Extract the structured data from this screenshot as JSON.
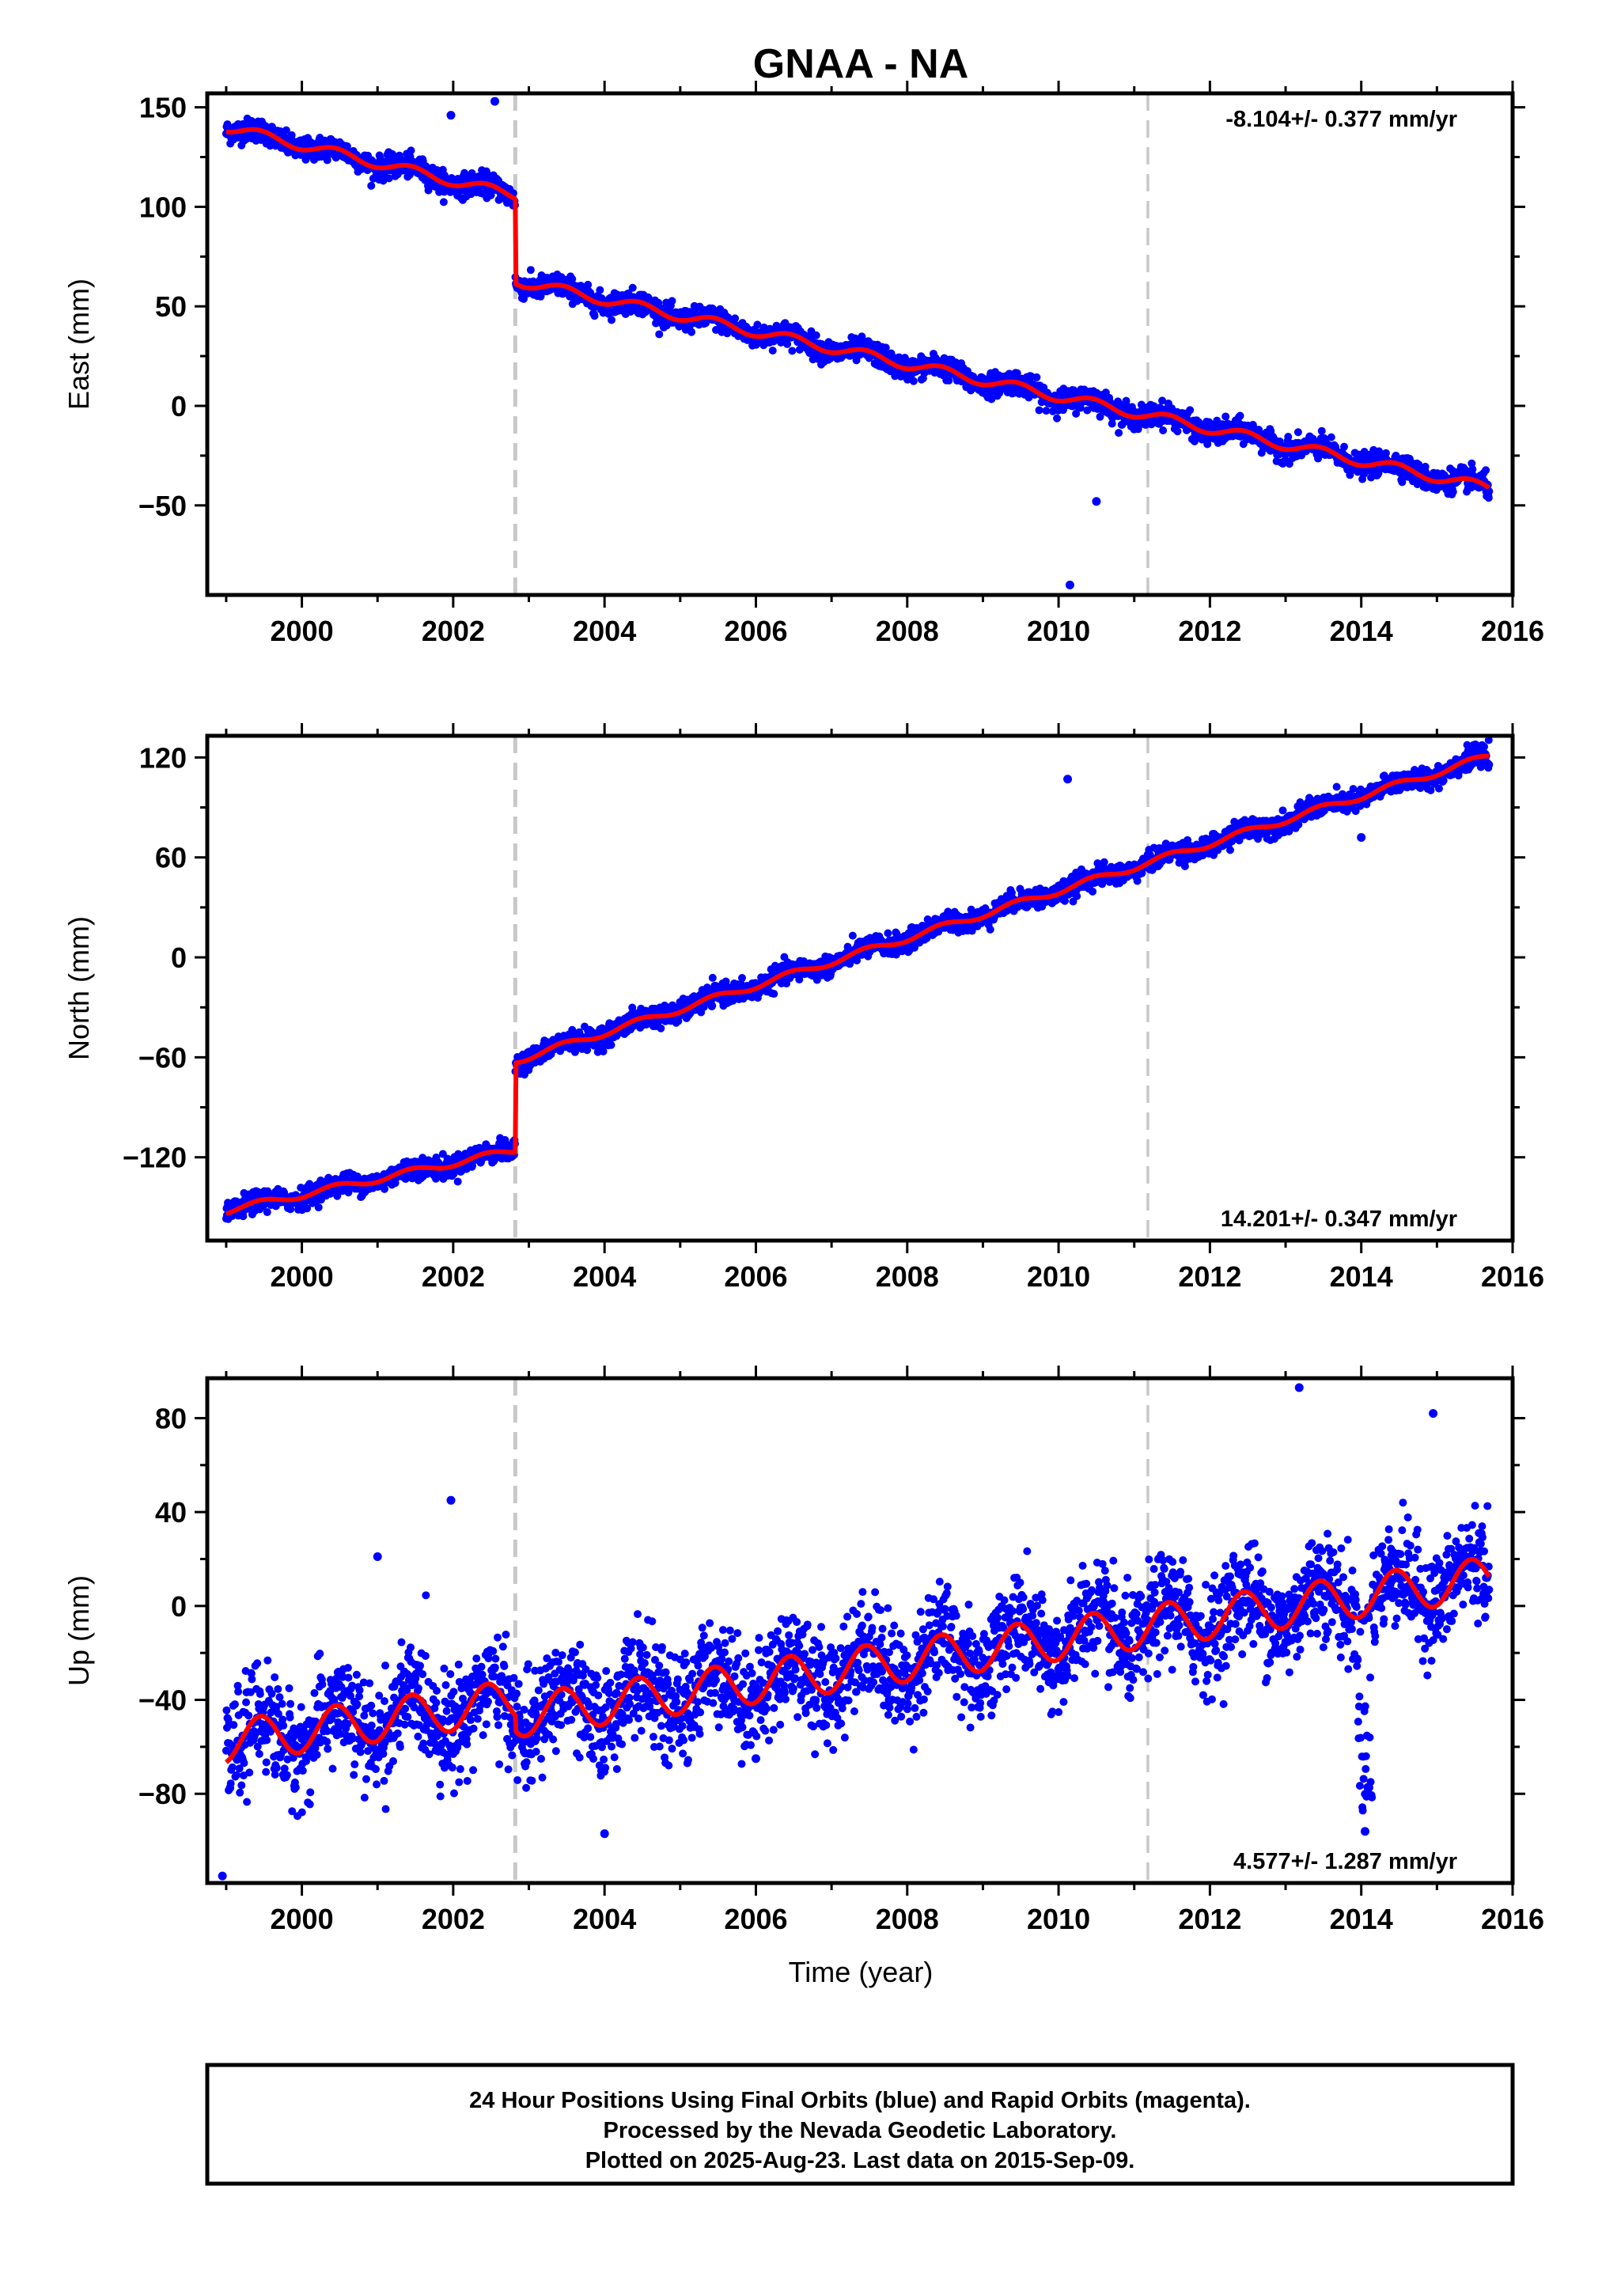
{
  "title": "GNAA - NA",
  "xlabel": "Time (year)",
  "footer": {
    "line1": "24 Hour Positions Using Final Orbits (blue) and Rapid Orbits (magenta).",
    "line2": "Processed by the Nevada Geodetic Laboratory.",
    "line3": "Plotted on 2025-Aug-23. Last data on 2015-Sep-09."
  },
  "colors": {
    "data": "#0000ff",
    "model": "#ff0000",
    "event_line": "#c8c8c8",
    "axes": "#000000"
  },
  "chart_data": [
    {
      "type": "scatter",
      "panel": "east",
      "ylabel": "East (mm)",
      "rate_label": "-8.104+/- 0.377 mm/yr",
      "rate_position": "top-right",
      "xlim": [
        1998.75,
        2016.0
      ],
      "ylim": [
        -95,
        157
      ],
      "xticks": [
        2000,
        2002,
        2004,
        2006,
        2008,
        2010,
        2012,
        2014,
        2016
      ],
      "yticks": [
        150,
        100,
        50,
        0,
        -50
      ],
      "ytick_labels": [
        "150",
        "100",
        "50",
        "0",
        "−50"
      ],
      "event_lines": [
        2002.82,
        2011.18
      ],
      "start": 1999.0,
      "end": 2015.69,
      "rate_before": -9.0,
      "rate_after": -8.104,
      "y_start": 140,
      "y_after_offset": 63,
      "offset_epoch": 2002.82,
      "annual_amplitude": 2.5,
      "scatter_sd": 2.8,
      "outliers": [
        [
          2001.97,
          146
        ],
        [
          2002.55,
          153
        ],
        [
          2010.15,
          -90
        ],
        [
          2010.5,
          -48
        ]
      ]
    },
    {
      "type": "scatter",
      "panel": "north",
      "ylabel": "North (mm)",
      "rate_label": "14.201+/- 0.347 mm/yr",
      "rate_position": "bottom-right",
      "xlim": [
        1998.75,
        2016.0
      ],
      "ylim": [
        -170,
        133
      ],
      "xticks": [
        2000,
        2002,
        2004,
        2006,
        2008,
        2010,
        2012,
        2014,
        2016
      ],
      "yticks": [
        120,
        60,
        0,
        -60,
        -120
      ],
      "ytick_labels": [
        "120",
        "60",
        "0",
        "−60",
        "−120"
      ],
      "event_lines": [
        2002.82,
        2011.18
      ],
      "start": 1999.0,
      "end": 2015.69,
      "rate_before": 9.5,
      "rate_after": 14.201,
      "y_start": -152,
      "y_after_offset": -62,
      "offset_epoch": 2002.82,
      "annual_amplitude": 2.0,
      "scatter_sd": 3.0,
      "outliers": [
        [
          2010.12,
          107
        ],
        [
          2014.0,
          72
        ]
      ]
    },
    {
      "type": "scatter",
      "panel": "up",
      "ylabel": "Up (mm)",
      "rate_label": "4.577+/- 1.287 mm/yr",
      "rate_position": "bottom-right",
      "xlim": [
        1998.75,
        2016.0
      ],
      "ylim": [
        -118,
        97
      ],
      "xticks": [
        2000,
        2002,
        2004,
        2006,
        2008,
        2010,
        2012,
        2014,
        2016
      ],
      "yticks": [
        80,
        40,
        0,
        -40,
        -80
      ],
      "ytick_labels": [
        "80",
        "40",
        "0",
        "−40",
        "−80"
      ],
      "event_lines": [
        2002.82,
        2011.18
      ],
      "start": 1999.0,
      "end": 2015.69,
      "rate_before": 4.577,
      "rate_after": 4.577,
      "y_start": -58,
      "y_after_offset": -47,
      "offset_epoch": 2002.82,
      "annual_amplitude": 9,
      "scatter_sd": 11,
      "outliers": [
        [
          1998.95,
          -115
        ],
        [
          2001.0,
          21
        ],
        [
          2001.97,
          45
        ],
        [
          2004.0,
          -97
        ],
        [
          2006.0,
          -65
        ],
        [
          2010.0,
          -27
        ],
        [
          2013.18,
          93
        ],
        [
          2014.05,
          -96
        ],
        [
          2014.95,
          82
        ]
      ]
    }
  ]
}
